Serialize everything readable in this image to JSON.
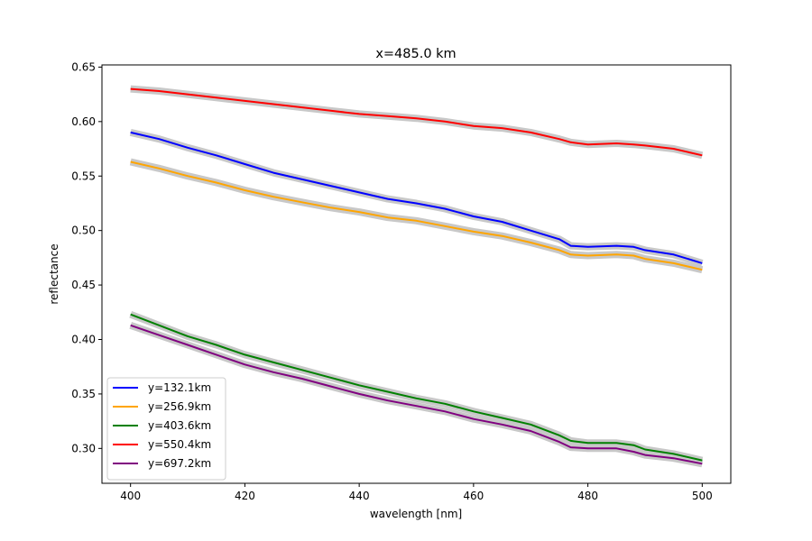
{
  "chart_data": {
    "type": "line",
    "title": "x=485.0 km",
    "xlabel": "wavelength [nm]",
    "ylabel": "reflectance",
    "xlim": [
      395,
      505
    ],
    "ylim": [
      0.268,
      0.652
    ],
    "xticks": [
      400,
      420,
      440,
      460,
      480,
      500
    ],
    "yticks": [
      0.3,
      0.35,
      0.4,
      0.45,
      0.5,
      0.55,
      0.6,
      0.65
    ],
    "xtick_labels": [
      "400",
      "420",
      "440",
      "460",
      "480",
      "500"
    ],
    "ytick_labels": [
      "0.30",
      "0.35",
      "0.40",
      "0.45",
      "0.50",
      "0.55",
      "0.60",
      "0.65"
    ],
    "grid": false,
    "legend_position": "lower-left",
    "uncertainty_band_color": "#c8c8c8",
    "x": [
      400,
      405,
      410,
      415,
      420,
      425,
      430,
      435,
      440,
      445,
      450,
      455,
      460,
      465,
      470,
      475,
      477,
      480,
      485,
      488,
      490,
      495,
      500
    ],
    "series": [
      {
        "name": "y=132.1km",
        "color": "#0000ff",
        "values": [
          0.59,
          0.584,
          0.576,
          0.569,
          0.561,
          0.553,
          0.547,
          0.541,
          0.535,
          0.529,
          0.525,
          0.52,
          0.513,
          0.508,
          0.5,
          0.492,
          0.486,
          0.485,
          0.486,
          0.485,
          0.482,
          0.478,
          0.47
        ]
      },
      {
        "name": "y=256.9km",
        "color": "#ffa500",
        "values": [
          0.563,
          0.557,
          0.55,
          0.544,
          0.537,
          0.531,
          0.526,
          0.521,
          0.517,
          0.512,
          0.509,
          0.504,
          0.499,
          0.495,
          0.489,
          0.482,
          0.478,
          0.477,
          0.478,
          0.477,
          0.474,
          0.47,
          0.464
        ]
      },
      {
        "name": "y=403.6km",
        "color": "#008000",
        "values": [
          0.423,
          0.413,
          0.403,
          0.395,
          0.386,
          0.379,
          0.372,
          0.365,
          0.358,
          0.352,
          0.346,
          0.341,
          0.334,
          0.328,
          0.322,
          0.312,
          0.307,
          0.305,
          0.305,
          0.303,
          0.299,
          0.295,
          0.289
        ]
      },
      {
        "name": "y=550.4km",
        "color": "#ff0000",
        "values": [
          0.63,
          0.628,
          0.625,
          0.622,
          0.619,
          0.616,
          0.613,
          0.61,
          0.607,
          0.605,
          0.603,
          0.6,
          0.596,
          0.594,
          0.59,
          0.584,
          0.581,
          0.579,
          0.58,
          0.579,
          0.578,
          0.575,
          0.569
        ]
      },
      {
        "name": "y=697.2km",
        "color": "#800080",
        "values": [
          0.413,
          0.404,
          0.395,
          0.386,
          0.377,
          0.37,
          0.364,
          0.357,
          0.35,
          0.344,
          0.339,
          0.334,
          0.327,
          0.322,
          0.316,
          0.306,
          0.301,
          0.3,
          0.3,
          0.297,
          0.294,
          0.291,
          0.286
        ]
      }
    ]
  }
}
